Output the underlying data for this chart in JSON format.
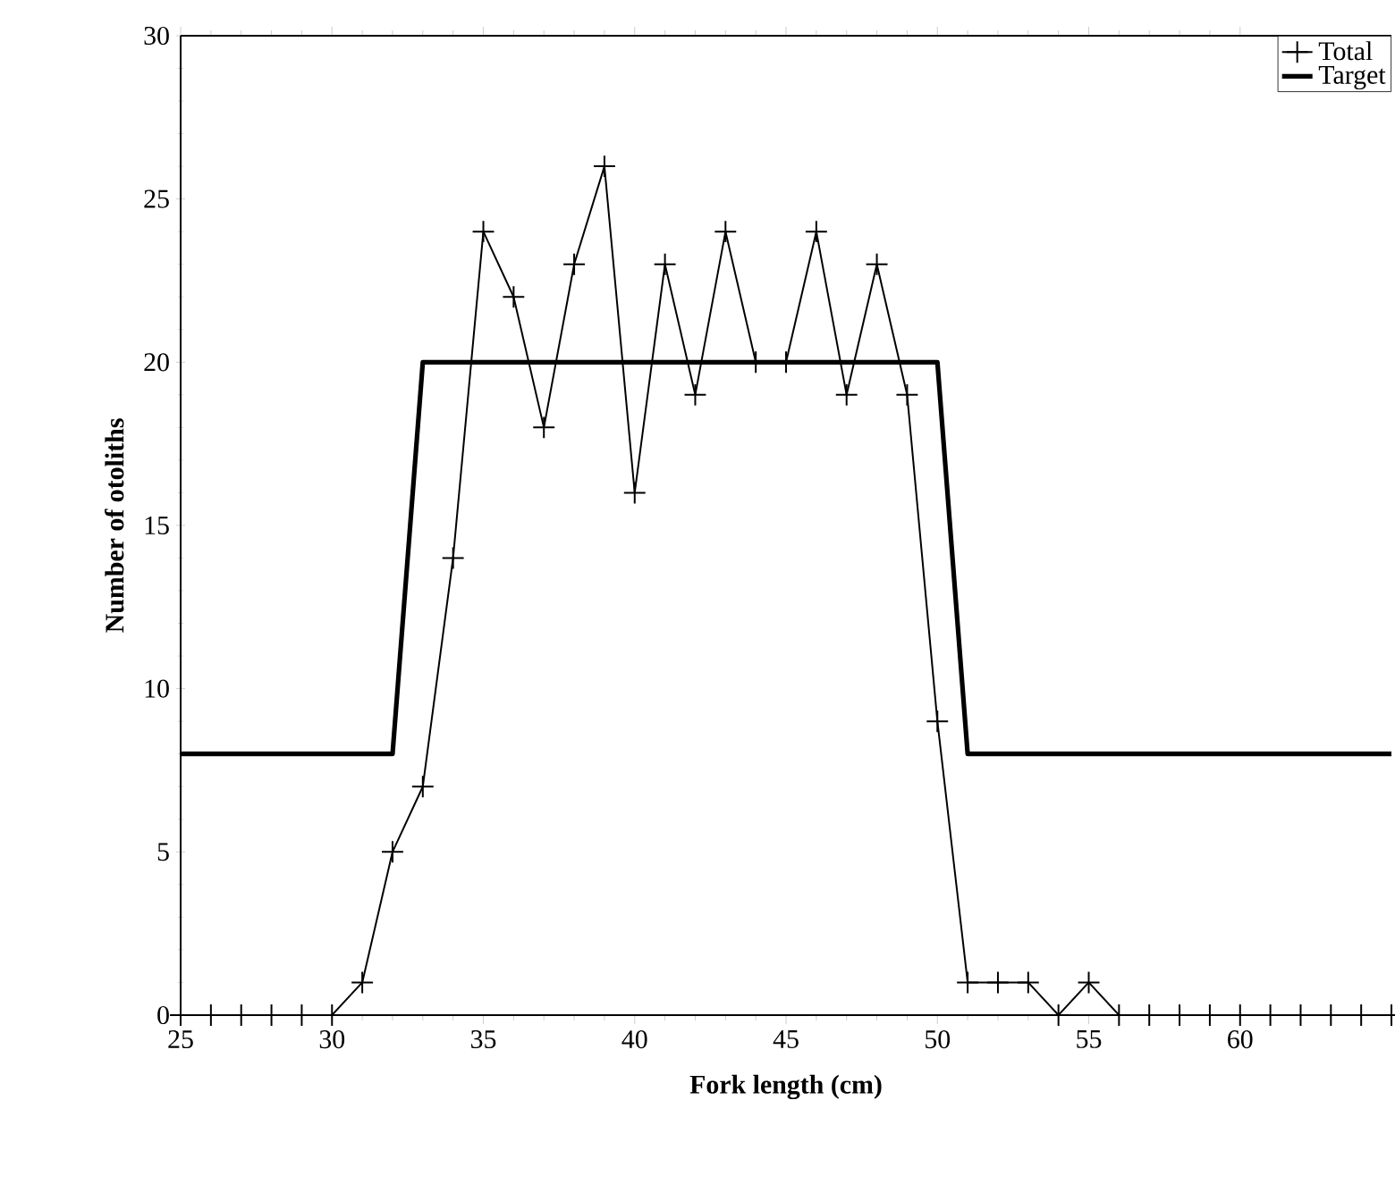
{
  "chart_data": {
    "type": "line",
    "xlabel": "Fork length (cm)",
    "ylabel": "Number of otoliths",
    "xlim": [
      25,
      65
    ],
    "xticks": [
      25,
      30,
      35,
      40,
      45,
      50,
      55,
      60
    ],
    "ylim": [
      0,
      30
    ],
    "yticks": [
      0,
      5,
      10,
      15,
      20,
      25,
      30
    ],
    "legend": "top right",
    "grid": false,
    "series": [
      {
        "name": "Total",
        "color": "#000000",
        "marker": "cross",
        "x": [
          25,
          26,
          27,
          28,
          29,
          30,
          31,
          32,
          33,
          34,
          35,
          36,
          37,
          38,
          39,
          40,
          41,
          42,
          43,
          44,
          45,
          46,
          47,
          48,
          49,
          50,
          51,
          52,
          53,
          54,
          55,
          56,
          57,
          58,
          59,
          60,
          61,
          62,
          63,
          64,
          65
        ],
        "values": [
          0,
          0,
          0,
          0,
          0,
          0,
          1,
          5,
          7,
          14,
          24,
          22,
          18,
          23,
          26,
          16,
          23,
          19,
          24,
          20,
          20,
          24,
          19,
          23,
          19,
          9,
          1,
          1,
          1,
          0,
          1,
          0,
          0,
          0,
          0,
          0,
          0,
          0,
          0,
          0,
          0
        ]
      },
      {
        "name": "Target",
        "color": "#000000",
        "marker": "none",
        "x": [
          25,
          32,
          33,
          50,
          51,
          65
        ],
        "values": [
          8,
          8,
          20,
          20,
          8,
          8
        ]
      }
    ]
  }
}
